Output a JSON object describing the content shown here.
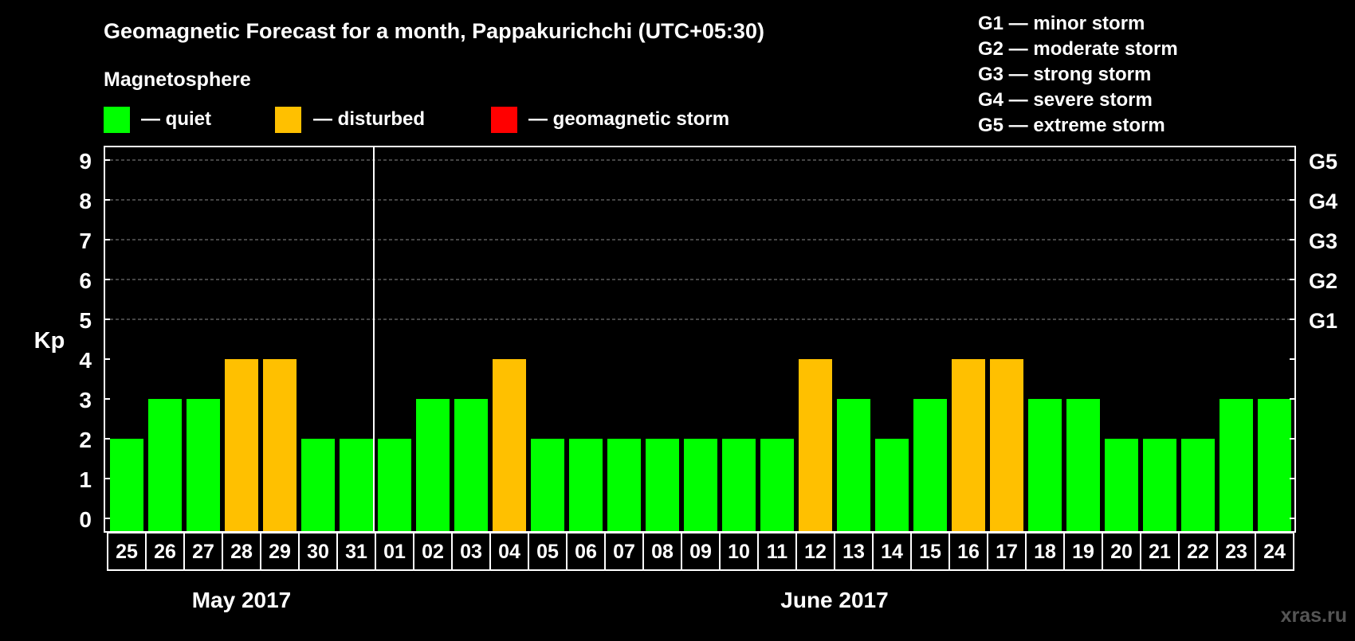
{
  "title": "Geomagnetic Forecast for a month, Pappakurichchi (UTC+05:30)",
  "legend": {
    "heading": "Magnetosphere",
    "items": [
      {
        "label": "— quiet",
        "color": "#00ff00"
      },
      {
        "label": "— disturbed",
        "color": "#ffc000"
      },
      {
        "label": "— geomagnetic storm",
        "color": "#ff0000"
      }
    ]
  },
  "storm_scale": [
    "G1 — minor storm",
    "G2 — moderate storm",
    "G3 — strong storm",
    "G4 — severe storm",
    "G5 — extreme storm"
  ],
  "watermark": "xras.ru",
  "chart_data": {
    "type": "bar",
    "ylabel": "Kp",
    "ylim": [
      0,
      9
    ],
    "yticks": [
      "0",
      "1",
      "2",
      "3",
      "4",
      "5",
      "6",
      "7",
      "8",
      "9"
    ],
    "right_axis": [
      {
        "kp": 5,
        "label": "G1"
      },
      {
        "kp": 6,
        "label": "G2"
      },
      {
        "kp": 7,
        "label": "G3"
      },
      {
        "kp": 8,
        "label": "G4"
      },
      {
        "kp": 9,
        "label": "G5"
      }
    ],
    "categories": [
      "25",
      "26",
      "27",
      "28",
      "29",
      "30",
      "31",
      "01",
      "02",
      "03",
      "04",
      "05",
      "06",
      "07",
      "08",
      "09",
      "10",
      "11",
      "12",
      "13",
      "14",
      "15",
      "16",
      "17",
      "18",
      "19",
      "20",
      "21",
      "22",
      "23",
      "24"
    ],
    "values": [
      2,
      3,
      3,
      4,
      4,
      2,
      2,
      2,
      3,
      3,
      4,
      2,
      2,
      2,
      2,
      2,
      2,
      2,
      4,
      3,
      2,
      3,
      4,
      4,
      3,
      3,
      2,
      2,
      2,
      3,
      3
    ],
    "levels": [
      "quiet",
      "quiet",
      "quiet",
      "disturbed",
      "disturbed",
      "quiet",
      "quiet",
      "quiet",
      "quiet",
      "quiet",
      "disturbed",
      "quiet",
      "quiet",
      "quiet",
      "quiet",
      "quiet",
      "quiet",
      "quiet",
      "disturbed",
      "quiet",
      "quiet",
      "quiet",
      "disturbed",
      "disturbed",
      "quiet",
      "quiet",
      "quiet",
      "quiet",
      "quiet",
      "quiet",
      "quiet"
    ],
    "colors": {
      "quiet": "#00ff00",
      "disturbed": "#ffc000",
      "storm": "#ff0000"
    },
    "months": [
      {
        "label": "May 2017",
        "start": 0,
        "count": 7
      },
      {
        "label": "June 2017",
        "start": 7,
        "count": 24
      }
    ]
  }
}
